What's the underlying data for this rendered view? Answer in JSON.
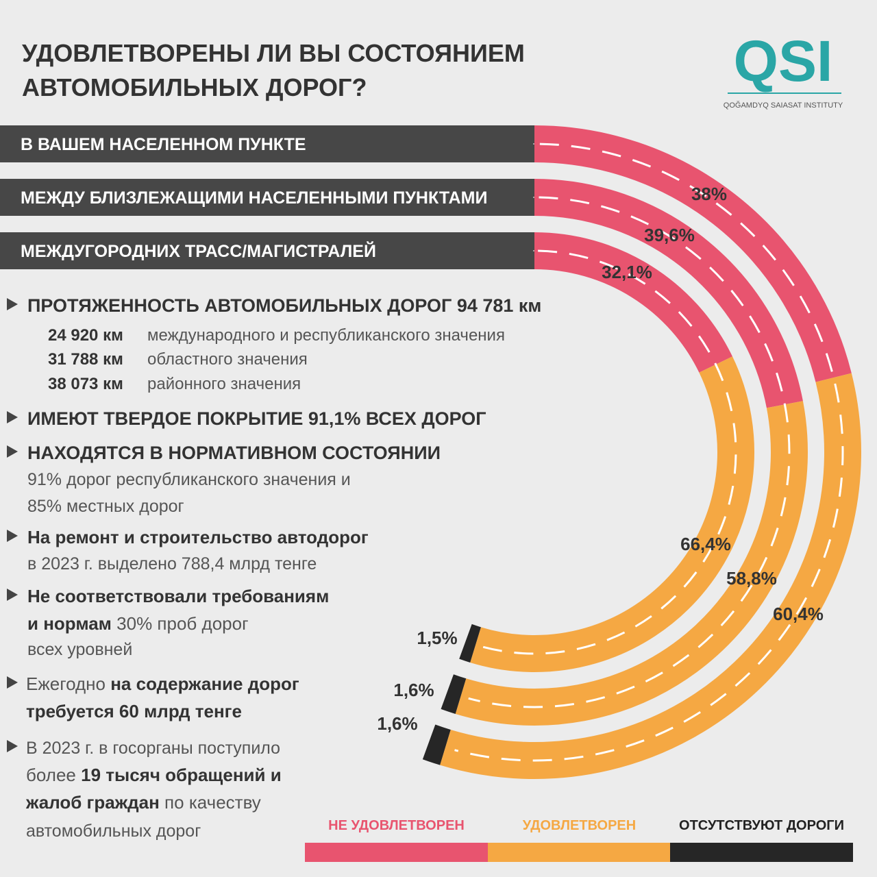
{
  "title": [
    "УДОВЛЕТВОРЕНЫ ЛИ ВЫ СОСТОЯНИЕМ",
    "АВТОМОБИЛЬНЫХ ДОРОГ?"
  ],
  "logo": {
    "text": "QSI",
    "subtitle": "QOĞAMDYQ SAIASAT INSTITUTY"
  },
  "chart_data": {
    "type": "ring",
    "categories": [
      "В ВАШЕМ НАСЕЛЕННОМ ПУНКТЕ",
      "МЕЖДУ БЛИЗЛЕЖАЩИМИ НАСЕЛЕННЫМИ ПУНКТАМИ",
      "МЕЖДУГОРОДНИХ ТРАСС/МАГИСТРАЛЕЙ"
    ],
    "series": [
      {
        "name": "НЕ УДОВЛЕТВОРЕН",
        "color": "#e8546f",
        "values": [
          38,
          39.6,
          32.1
        ],
        "value_labels": [
          "38%",
          "39,6%",
          "32,1%"
        ]
      },
      {
        "name": "УДОВЛЕТВОРЕН",
        "color": "#f5a843",
        "values": [
          60.4,
          58.8,
          66.4
        ],
        "value_labels": [
          "60,4%",
          "58,8%",
          "66,4%"
        ]
      },
      {
        "name": "ОТСУТСТВУЮТ ДОРОГИ",
        "color": "#262626",
        "values": [
          1.6,
          1.6,
          1.5
        ],
        "value_labels": [
          "1,6%",
          "1,6%",
          "1,5%"
        ]
      }
    ]
  },
  "facts": [
    [
      [
        {
          "text": "ПРОТЯЖЕННОСТЬ АВТОМОБИЛЬНЫХ ДОРОГ 94 781 км",
          "bold": true
        }
      ],
      [
        {
          "text": "24 920 км",
          "bold": true
        },
        {
          "text": "международного и республиканского значения",
          "bold": false
        }
      ],
      [
        {
          "text": "31 788 км",
          "bold": true
        },
        {
          "text": "областного значения",
          "bold": false
        }
      ],
      [
        {
          "text": "38 073 км",
          "bold": true
        },
        {
          "text": "районного значения",
          "bold": false
        }
      ]
    ],
    [
      [
        {
          "text": "ИМЕЮТ ТВЕРДОЕ ПОКРЫТИЕ 91,1% ВСЕХ ДОРОГ",
          "bold": true
        }
      ]
    ],
    [
      [
        {
          "text": "НАХОДЯТСЯ В НОРМАТИВНОМ СОСТОЯНИИ",
          "bold": true
        }
      ],
      [
        {
          "text": "91% дорог республиканского значения и",
          "bold": false
        }
      ],
      [
        {
          "text": "85% местных дорог",
          "bold": false
        }
      ]
    ],
    [
      [
        {
          "text": "На ремонт и строительство автодорог",
          "bold": true
        }
      ],
      [
        {
          "text": "в 2023 г. выделено 788,4 млрд тенге",
          "bold": false
        }
      ]
    ],
    [
      [
        {
          "text": "Не соответствовали требованиям",
          "bold": true
        }
      ],
      [
        {
          "text": "и нормам",
          "bold": true
        },
        {
          "text": " 30% проб дорог",
          "bold": false
        }
      ],
      [
        {
          "text": "всех уровней",
          "bold": false
        }
      ]
    ],
    [
      [
        {
          "text": "Ежегодно ",
          "bold": false
        },
        {
          "text": "на содержание дорог",
          "bold": true
        }
      ],
      [
        {
          "text": "требуется 60 млрд тенге",
          "bold": true
        }
      ]
    ],
    [
      [
        {
          "text": "В 2023 г. в госорганы поступило",
          "bold": false
        }
      ],
      [
        {
          "text": "более ",
          "bold": false
        },
        {
          "text": "19 тысяч обращений и",
          "bold": true
        }
      ],
      [
        {
          "text": "жалоб граждан",
          "bold": true
        },
        {
          "text": " по качеству",
          "bold": false
        }
      ],
      [
        {
          "text": "автомобильных дорог",
          "bold": false
        }
      ]
    ]
  ]
}
